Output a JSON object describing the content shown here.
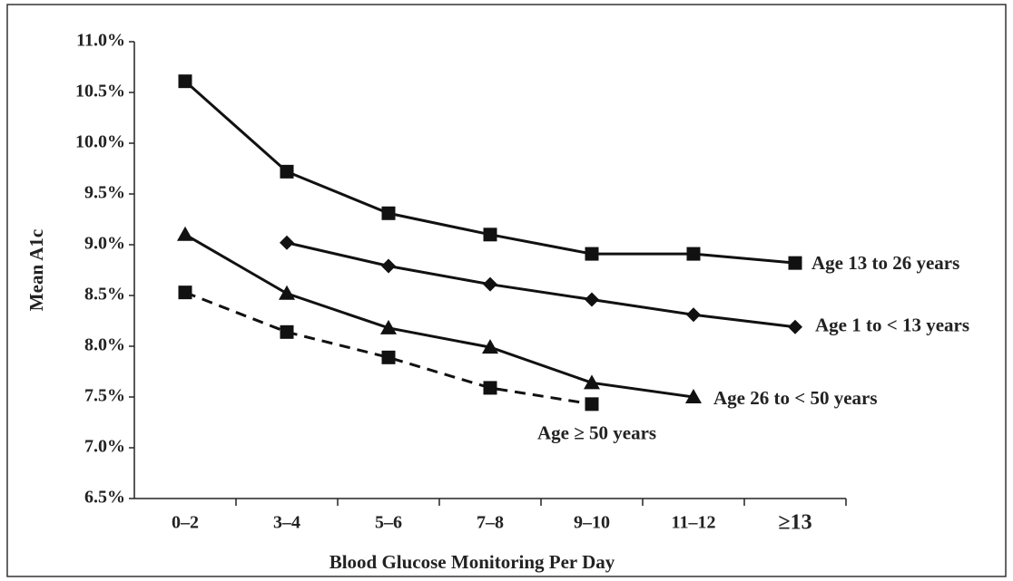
{
  "chart_data": {
    "type": "line",
    "y_label": "Mean A1c",
    "x_label": "Blood Glucose Monitoring Per Day",
    "categories": [
      "0–2",
      "3–4",
      "5–6",
      "7–8",
      "9–10",
      "11–12",
      "≥13"
    ],
    "ylim": [
      6.5,
      11.0
    ],
    "yticks": [
      {
        "value": 6.5,
        "label": "6.5%"
      },
      {
        "value": 7.0,
        "label": "7.0%"
      },
      {
        "value": 7.5,
        "label": "7.5%"
      },
      {
        "value": 8.0,
        "label": "8.0%"
      },
      {
        "value": 8.5,
        "label": "8.5%"
      },
      {
        "value": 9.0,
        "label": "9.0%"
      },
      {
        "value": 9.5,
        "label": "9.5%"
      },
      {
        "value": 10.0,
        "label": "10.0%"
      },
      {
        "value": 10.5,
        "label": "10.5%"
      },
      {
        "value": 11.0,
        "label": "11.0%"
      }
    ],
    "series": [
      {
        "name": "Age 13 to 26 years",
        "color": "#111111",
        "marker": "square",
        "dashed": false,
        "values": [
          10.61,
          9.72,
          9.31,
          9.1,
          8.91,
          8.91,
          8.82
        ]
      },
      {
        "name": "Age 1 to < 13 years",
        "color": "#111111",
        "marker": "diamond",
        "dashed": false,
        "values": [
          null,
          9.02,
          8.79,
          8.61,
          8.46,
          8.31,
          8.19
        ]
      },
      {
        "name": "Age 26 to < 50 years",
        "color": "#111111",
        "marker": "triangle",
        "dashed": false,
        "values": [
          9.1,
          8.52,
          8.18,
          7.99,
          7.64,
          7.5,
          null
        ]
      },
      {
        "name": "Age ≥ 50 years",
        "color": "#111111",
        "marker": "square",
        "dashed": true,
        "values": [
          8.53,
          8.14,
          7.89,
          7.59,
          7.43,
          null,
          null
        ]
      }
    ]
  }
}
